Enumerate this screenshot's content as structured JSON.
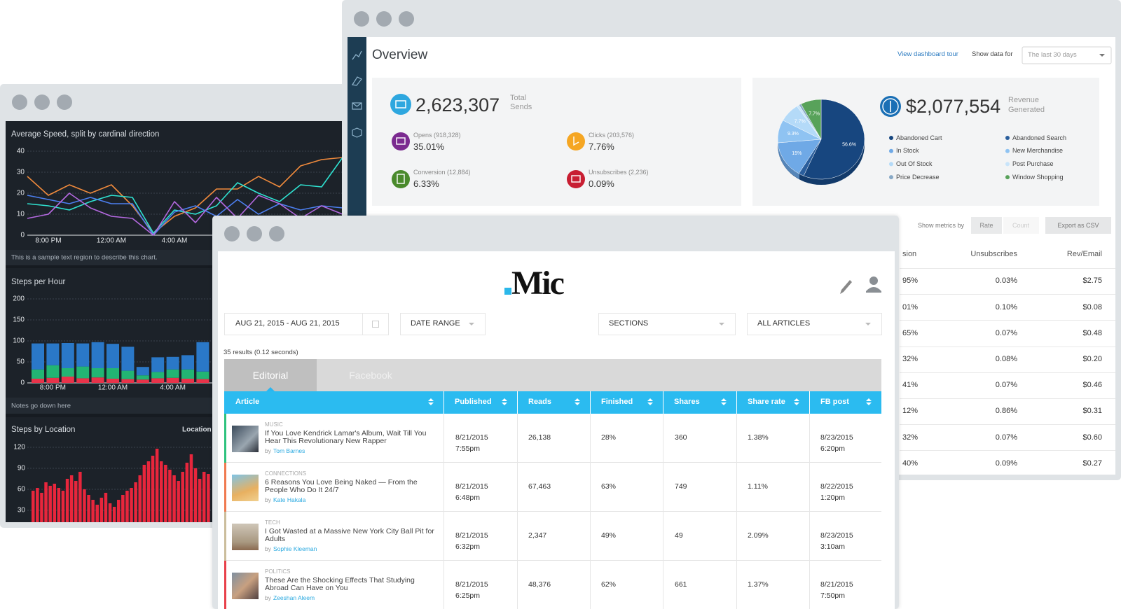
{
  "activity": {
    "speed_chart": {
      "type": "line",
      "title": "Average Speed, split by cardinal direction",
      "categories": [
        null,
        "8:00 PM",
        null,
        null,
        "12:00 AM",
        null,
        null,
        "4:00 AM",
        null,
        null,
        null,
        null,
        null,
        null,
        null,
        null
      ],
      "series": [
        {
          "color": "#f08a3c",
          "values": [
            28,
            19,
            24,
            20,
            24,
            14,
            1,
            9,
            13,
            22,
            22,
            28,
            23,
            33,
            36,
            37
          ]
        },
        {
          "color": "#2fe3d2",
          "values": [
            15,
            14,
            12,
            16,
            19,
            18,
            1,
            12,
            10,
            14,
            25,
            20,
            16,
            24,
            23,
            37
          ]
        },
        {
          "color": "#4c7ff0",
          "values": [
            19,
            17,
            15,
            18,
            15,
            15,
            0,
            11,
            14,
            9,
            17,
            10,
            15,
            12,
            14,
            13
          ]
        },
        {
          "color": "#b469e0",
          "values": [
            8,
            10,
            20,
            13,
            9,
            8,
            0,
            16,
            6,
            18,
            8,
            19,
            15,
            8,
            14,
            10
          ]
        }
      ],
      "ylim": [
        0,
        40
      ],
      "yticks": [
        0,
        10,
        20,
        30,
        40
      ],
      "grid": true
    },
    "speed_note": "This is a sample text region to describe this chart.",
    "steps_chart": {
      "type": "bar",
      "stacked": true,
      "title": "Steps per Hour",
      "categories": [
        null,
        "8:00 PM",
        null,
        null,
        null,
        "12:00 AM",
        null,
        null,
        null,
        "4:00 AM",
        null,
        null
      ],
      "series": [
        {
          "color": "#e8334a",
          "values": [
            10,
            12,
            15,
            11,
            13,
            10,
            9,
            8,
            11,
            12,
            10,
            9
          ]
        },
        {
          "color": "#22b573",
          "values": [
            22,
            30,
            20,
            28,
            22,
            25,
            20,
            10,
            15,
            20,
            22,
            18
          ]
        },
        {
          "color": "#2a78c8",
          "values": [
            62,
            52,
            60,
            55,
            62,
            58,
            57,
            20,
            35,
            30,
            34,
            70
          ]
        }
      ],
      "ylim": [
        0,
        200
      ],
      "yticks": [
        0,
        50,
        100,
        150,
        200
      ],
      "grid": true
    },
    "steps_note": "Notes go down here",
    "location_chart": {
      "type": "bar",
      "title": "Steps by Location",
      "legend_label": "Location",
      "values": [
        58,
        62,
        55,
        70,
        65,
        68,
        62,
        58,
        75,
        80,
        72,
        85,
        60,
        52,
        45,
        38,
        48,
        55,
        40,
        35,
        45,
        52,
        58,
        62,
        70,
        80,
        95,
        100,
        108,
        118,
        100,
        95,
        88,
        80,
        72,
        85,
        98,
        110,
        90,
        75,
        85,
        82
      ],
      "color": "#e8263c",
      "ylim": [
        0,
        120
      ],
      "yticks": [
        30,
        60,
        90,
        120
      ],
      "grid": true
    }
  },
  "overview": {
    "title": "Overview",
    "tour_link": "View dashboard tour",
    "period_label": "Show data for",
    "period_value": "The last 30 days",
    "sends": {
      "value": "2,623,307",
      "label": "Total Sends"
    },
    "metrics": [
      {
        "label": "Opens (918,328)",
        "value": "35.01%"
      },
      {
        "label": "Clicks (203,576)",
        "value": "7.76%"
      },
      {
        "label": "Conversion (12,884)",
        "value": "6.33%"
      },
      {
        "label": "Unsubscribes (2,236)",
        "value": "0.09%"
      }
    ],
    "pie": {
      "type": "pie",
      "categories": [
        "Abandoned Cart",
        "Abandoned Search",
        "In Stock",
        "New Merchandise",
        "Out Of Stock",
        "Post Purchase",
        "Price Decrease",
        "Window Shopping"
      ],
      "values": [
        56.6,
        2,
        15,
        9.3,
        7.7,
        0.9,
        0.8,
        7.7
      ],
      "value_labels": [
        "56.6%",
        null,
        "15%",
        "9.3%",
        "7.7%",
        null,
        null,
        "7.7%"
      ],
      "colors": [
        "#17467f",
        "#2a5e9c",
        "#6fa9e6",
        "#8fc3f2",
        "#b4daf8",
        "#c8e4fa",
        "#88a9c6",
        "#58a25a"
      ]
    },
    "revenue": {
      "value": "$2,077,554",
      "label": "Revenue Generated"
    },
    "controls": {
      "label": "Show metrics by",
      "options": [
        "Rate",
        "Count"
      ],
      "export": "Export as CSV"
    },
    "table": {
      "columns": [
        "sion",
        "Unsubscribes",
        "Rev/Email"
      ],
      "rows": [
        [
          "95%",
          "0.03%",
          "$2.75"
        ],
        [
          "01%",
          "0.10%",
          "$0.08"
        ],
        [
          "65%",
          "0.07%",
          "$0.48"
        ],
        [
          "32%",
          "0.08%",
          "$0.20"
        ],
        [
          "41%",
          "0.07%",
          "$0.46"
        ],
        [
          "12%",
          "0.86%",
          "$0.31"
        ],
        [
          "32%",
          "0.07%",
          "$0.60"
        ],
        [
          "40%",
          "0.09%",
          "$0.27"
        ]
      ]
    }
  },
  "mic": {
    "logo": "Mic",
    "filters": [
      "AUG 21, 2015 - AUG 21, 2015",
      "DATE RANGE",
      "SECTIONS",
      "ALL ARTICLES"
    ],
    "results": "35 results (0.12 seconds)",
    "tabs": [
      "Editorial",
      "Facebook"
    ],
    "columns": [
      "Article",
      "Published",
      "Reads",
      "Finished",
      "Shares",
      "Share rate",
      "FB post"
    ],
    "by": "by",
    "rows": [
      {
        "section": "MUSIC",
        "title": "If You Love Kendrick Lamar's Album, Wait Till You Hear This Revolutionary New Rapper",
        "author": "Tom Barnes",
        "published_date": "8/21/2015",
        "published_time": "7:55pm",
        "reads": "26,138",
        "finished": "28%",
        "shares": "360",
        "share_rate": "1.38%",
        "fb_date": "8/23/2015",
        "fb_time": "6:20pm"
      },
      {
        "section": "CONNECTIONS",
        "title": "6 Reasons You Love Being Naked — From the People Who Do It 24/7",
        "author": "Kate Hakala",
        "published_date": "8/21/2015",
        "published_time": "6:48pm",
        "reads": "67,463",
        "finished": "63%",
        "shares": "749",
        "share_rate": "1.11%",
        "fb_date": "8/22/2015",
        "fb_time": "1:20pm"
      },
      {
        "section": "TECH",
        "title": "I Got Wasted at a Massive New York City Ball Pit for Adults",
        "author": "Sophie Kleeman",
        "published_date": "8/21/2015",
        "published_time": "6:32pm",
        "reads": "2,347",
        "finished": "49%",
        "shares": "49",
        "share_rate": "2.09%",
        "fb_date": "8/23/2015",
        "fb_time": "3:10am"
      },
      {
        "section": "POLITICS",
        "title": "These Are the Shocking Effects That Studying Abroad Can Have on You",
        "author": "Zeeshan Aleem",
        "published_date": "8/21/2015",
        "published_time": "6:25pm",
        "reads": "48,376",
        "finished": "62%",
        "shares": "661",
        "share_rate": "1.37%",
        "fb_date": "8/21/2015",
        "fb_time": "7:50pm"
      }
    ]
  }
}
